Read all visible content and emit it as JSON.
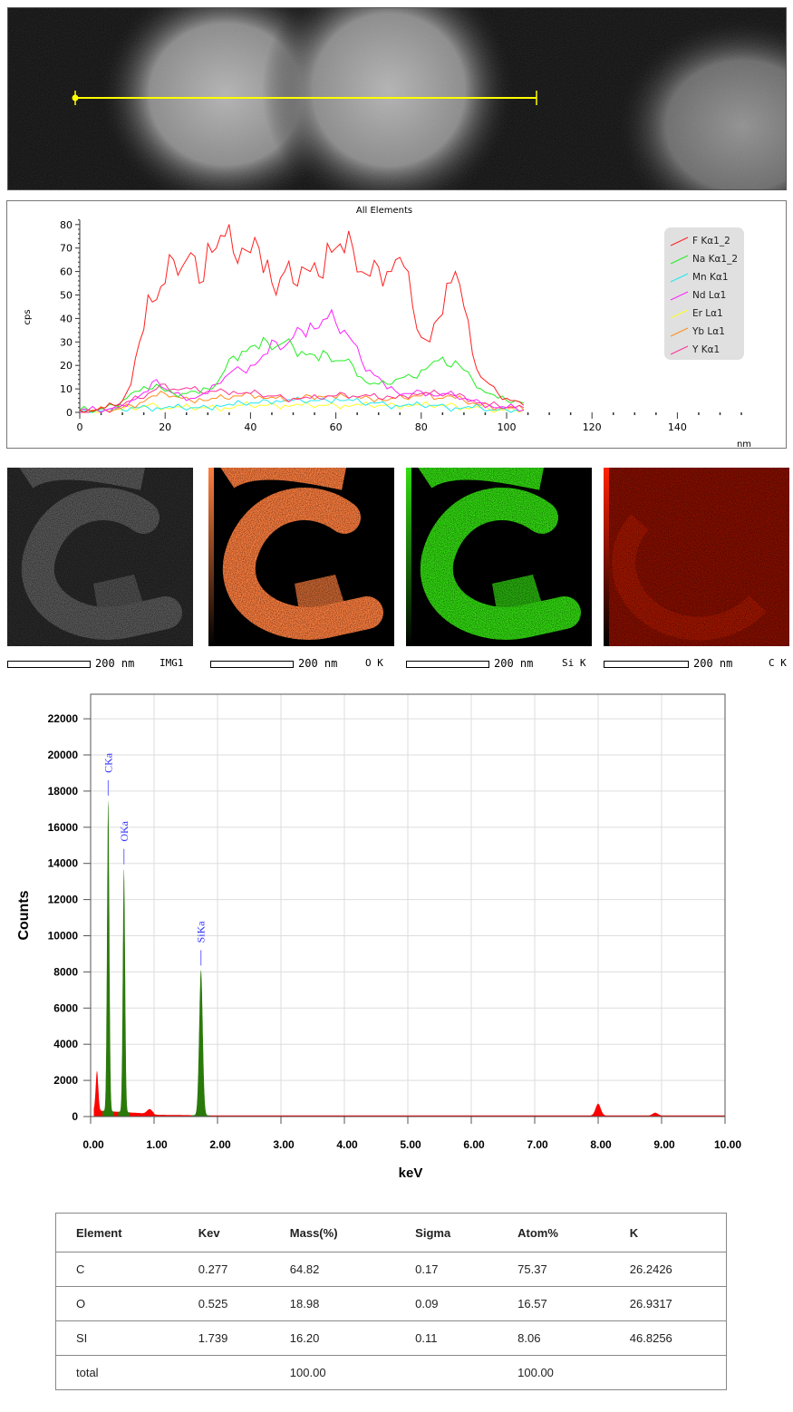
{
  "sem_image": {
    "line_color": "#ffff00"
  },
  "linescan": {
    "title": "All Elements",
    "ylabel": "cps",
    "xlabel": "nm",
    "x_ticks": [
      "0",
      "20",
      "40",
      "60",
      "80",
      "100",
      "120",
      "140"
    ],
    "y_ticks": [
      "0",
      "10",
      "20",
      "30",
      "40",
      "50",
      "60",
      "70",
      "80"
    ],
    "legend": [
      {
        "label": "F Kα1_2",
        "color": "#ff2020"
      },
      {
        "label": "Na Kα1_2",
        "color": "#22ee22"
      },
      {
        "label": "Mn Kα1",
        "color": "#22e8f0"
      },
      {
        "label": "Nd Lα1",
        "color": "#ff22ff"
      },
      {
        "label": "Er Lα1",
        "color": "#ffff22"
      },
      {
        "label": "Yb Lα1",
        "color": "#ff8c1a"
      },
      {
        "label": "Y Kα1",
        "color": "#ff3399"
      }
    ]
  },
  "maps": [
    {
      "label": "IMG1",
      "scale": "200 nm",
      "color": "#9a9a9a"
    },
    {
      "label": "O K",
      "scale": "200 nm",
      "color": "#ff7f3f"
    },
    {
      "label": "Si K",
      "scale": "200 nm",
      "color": "#33dd11"
    },
    {
      "label": "C K",
      "scale": "200 nm",
      "color": "#ff2200"
    }
  ],
  "chart_data": [
    {
      "type": "line",
      "title": "All Elements",
      "xlabel": "nm",
      "ylabel": "cps",
      "xlim": [
        0,
        157
      ],
      "ylim": [
        0,
        82
      ],
      "legend_position": "top-right",
      "x": [
        0,
        2,
        4,
        6,
        8,
        10,
        12,
        14,
        16,
        18,
        20,
        22,
        24,
        26,
        28,
        30,
        32,
        34,
        36,
        38,
        40,
        42,
        44,
        46,
        48,
        50,
        52,
        54,
        56,
        58,
        60,
        62,
        64,
        66,
        68,
        70,
        72,
        74,
        76,
        78,
        80,
        82,
        84,
        86,
        88,
        90,
        92,
        94,
        96,
        98,
        100,
        102,
        104
      ],
      "series": [
        {
          "name": "F Kα1_2",
          "values": [
            1,
            1,
            1,
            2,
            3,
            5,
            12,
            30,
            50,
            48,
            55,
            65,
            62,
            68,
            55,
            72,
            70,
            75,
            68,
            70,
            68,
            70,
            65,
            50,
            60,
            55,
            62,
            60,
            58,
            72,
            70,
            68,
            70,
            60,
            58,
            62,
            60,
            65,
            62,
            45,
            32,
            30,
            40,
            55,
            60,
            45,
            25,
            15,
            12,
            8,
            6,
            5,
            3
          ]
        },
        {
          "name": "Na Kα1_2",
          "values": [
            1,
            1,
            1,
            2,
            3,
            5,
            8,
            9,
            10,
            12,
            9,
            8,
            8,
            9,
            8,
            10,
            12,
            18,
            24,
            26,
            28,
            27,
            30,
            28,
            30,
            28,
            26,
            25,
            22,
            25,
            22,
            22,
            20,
            15,
            12,
            12,
            12,
            14,
            15,
            15,
            18,
            20,
            22,
            20,
            22,
            18,
            14,
            10,
            8,
            6,
            5,
            5,
            4
          ]
        },
        {
          "name": "Mn Kα1",
          "values": [
            0,
            0,
            1,
            1,
            1,
            1,
            2,
            2,
            2,
            2,
            2,
            2,
            2,
            2,
            2,
            2,
            3,
            3,
            3,
            4,
            4,
            4,
            5,
            5,
            5,
            5,
            5,
            5,
            5,
            5,
            6,
            5,
            5,
            4,
            4,
            4,
            3,
            3,
            3,
            3,
            3,
            3,
            3,
            2,
            2,
            2,
            2,
            2,
            1,
            1,
            1,
            1,
            1
          ]
        },
        {
          "name": "Nd Lα1",
          "values": [
            1,
            1,
            1,
            1,
            2,
            3,
            5,
            7,
            9,
            14,
            10,
            8,
            7,
            6,
            7,
            8,
            12,
            15,
            18,
            18,
            20,
            22,
            25,
            30,
            28,
            32,
            35,
            38,
            36,
            40,
            38,
            35,
            30,
            22,
            18,
            15,
            10,
            9,
            8,
            8,
            9,
            8,
            7,
            8,
            7,
            6,
            5,
            4,
            3,
            2,
            2,
            2,
            1
          ]
        },
        {
          "name": "Er Lα1",
          "values": [
            0,
            0,
            0,
            1,
            1,
            1,
            2,
            2,
            3,
            3,
            2,
            2,
            2,
            2,
            2,
            2,
            2,
            2,
            2,
            3,
            3,
            3,
            3,
            3,
            3,
            3,
            3,
            3,
            3,
            3,
            3,
            3,
            3,
            3,
            3,
            3,
            3,
            3,
            3,
            3,
            3,
            3,
            3,
            3,
            3,
            2,
            2,
            2,
            1,
            1,
            1,
            1,
            1
          ]
        },
        {
          "name": "Yb Lα1",
          "values": [
            0,
            0,
            1,
            1,
            1,
            2,
            3,
            4,
            6,
            7,
            8,
            7,
            6,
            5,
            6,
            5,
            6,
            6,
            7,
            7,
            8,
            7,
            6,
            6,
            5,
            6,
            6,
            7,
            7,
            7,
            6,
            7,
            7,
            6,
            6,
            6,
            5,
            6,
            6,
            7,
            7,
            8,
            6,
            7,
            6,
            5,
            4,
            3,
            3,
            2,
            2,
            2,
            1
          ]
        },
        {
          "name": "Y Kα1",
          "values": [
            0,
            0,
            1,
            1,
            2,
            3,
            5,
            6,
            8,
            10,
            12,
            10,
            10,
            10,
            9,
            9,
            9,
            9,
            9,
            8,
            8,
            8,
            7,
            7,
            6,
            6,
            6,
            6,
            6,
            7,
            7,
            8,
            7,
            7,
            7,
            6,
            7,
            6,
            7,
            8,
            8,
            8,
            8,
            8,
            7,
            7,
            5,
            4,
            3,
            3,
            2,
            2,
            2
          ]
        }
      ]
    },
    {
      "type": "area",
      "xlabel": "keV",
      "ylabel": "Counts",
      "xlim": [
        0,
        10
      ],
      "ylim": [
        0,
        23000
      ],
      "grid": true,
      "x_ticks": [
        "0.00",
        "1.00",
        "2.00",
        "3.00",
        "4.00",
        "5.00",
        "6.00",
        "7.00",
        "8.00",
        "9.00",
        "10.00"
      ],
      "y_ticks": [
        "0",
        "2000",
        "4000",
        "6000",
        "8000",
        "10000",
        "12000",
        "14000",
        "16000",
        "18000",
        "20000",
        "22000"
      ],
      "identified_peaks": [
        {
          "label": "CKa",
          "kev": 0.277,
          "counts": 17500
        },
        {
          "label": "OKa",
          "kev": 0.525,
          "counts": 13700
        },
        {
          "label": "SiKa",
          "kev": 1.739,
          "counts": 8100
        }
      ],
      "other_peaks": [
        {
          "kev": 0.1,
          "counts": 2200
        },
        {
          "kev": 0.93,
          "counts": 250
        },
        {
          "kev": 8.0,
          "counts": 650
        },
        {
          "kev": 8.9,
          "counts": 150
        }
      ],
      "colors": {
        "identified": "#2a7a0a",
        "background": "#ff0000",
        "peak_label": "#3333ff"
      }
    }
  ],
  "table": {
    "headers": [
      "Element",
      "Kev",
      "Mass(%)",
      "Sigma",
      "Atom%",
      "K"
    ],
    "rows": [
      [
        "C",
        "0.277",
        "64.82",
        "0.17",
        "75.37",
        "26.2426"
      ],
      [
        "O",
        "0.525",
        "18.98",
        "0.09",
        "16.57",
        "26.9317"
      ],
      [
        "SI",
        "1.739",
        "16.20",
        "0.11",
        "8.06",
        "46.8256"
      ],
      [
        "total",
        "",
        "100.00",
        "",
        "100.00",
        ""
      ]
    ]
  }
}
